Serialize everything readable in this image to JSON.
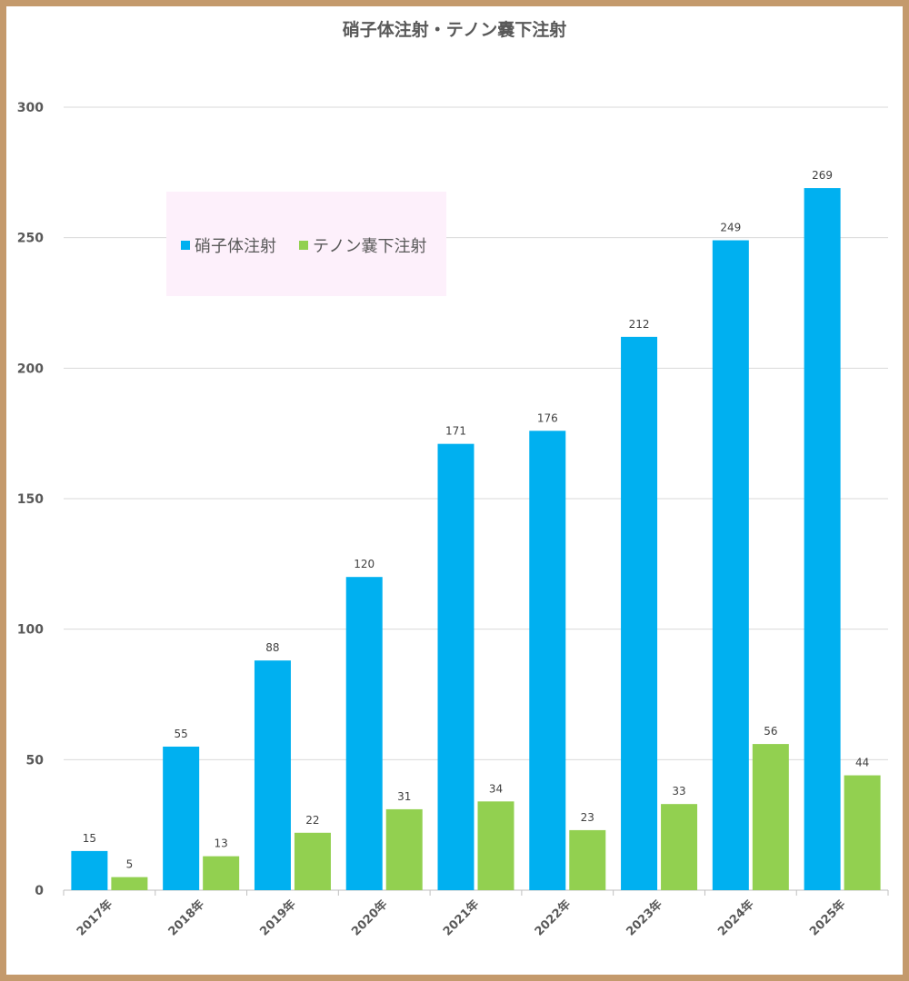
{
  "chart_data": {
    "type": "bar",
    "title": "硝子体注射・テノン嚢下注射",
    "categories": [
      "2017年",
      "2018年",
      "2019年",
      "2020年",
      "2021年",
      "2022年",
      "2023年",
      "2024年",
      "2025年"
    ],
    "series": [
      {
        "name": "硝子体注射",
        "color": "#00b0f0",
        "values": [
          15,
          55,
          88,
          120,
          171,
          176,
          212,
          249,
          269
        ]
      },
      {
        "name": "テノン嚢下注射",
        "color": "#92d050",
        "values": [
          5,
          13,
          22,
          31,
          34,
          23,
          33,
          56,
          44
        ]
      }
    ],
    "xlabel": "",
    "ylabel": "",
    "ylim": [
      0,
      300
    ],
    "yticks": [
      0,
      50,
      100,
      150,
      200,
      250,
      300
    ],
    "grid": true,
    "legend_position": "top-left"
  },
  "colors": {
    "frame": "#c49a6c",
    "legend_background": "#fdf0fb",
    "gridline": "#d9d9d9",
    "text": "#595959"
  }
}
